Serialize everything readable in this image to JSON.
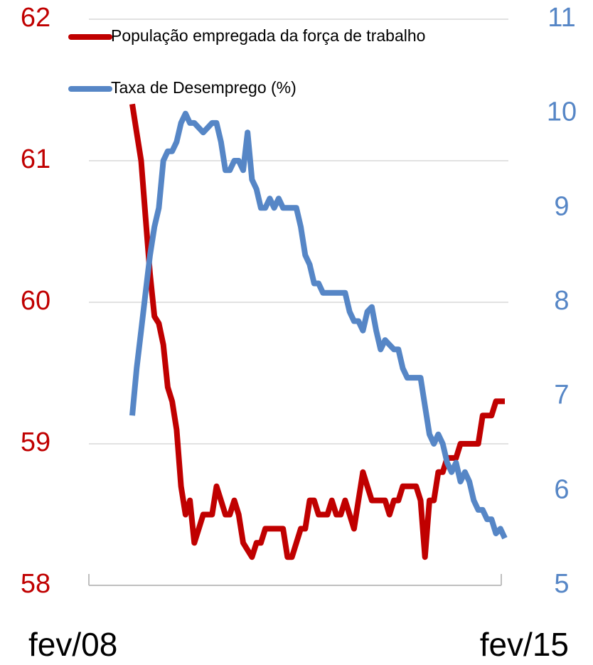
{
  "chart_data": {
    "type": "line",
    "categories": [
      "fev/08",
      null,
      null,
      null,
      null,
      null,
      null,
      null,
      null,
      null,
      null,
      null,
      null,
      null,
      null,
      null,
      null,
      null,
      null,
      null,
      null,
      null,
      null,
      null,
      null,
      null,
      null,
      null,
      null,
      null,
      null,
      null,
      null,
      null,
      null,
      null,
      null,
      null,
      null,
      null,
      null,
      null,
      null,
      null,
      null,
      null,
      null,
      null,
      null,
      null,
      null,
      null,
      null,
      null,
      null,
      null,
      null,
      null,
      null,
      null,
      null,
      null,
      null,
      null,
      null,
      null,
      null,
      null,
      null,
      null,
      null,
      null,
      null,
      null,
      null,
      null,
      null,
      null,
      null,
      null,
      null,
      null,
      null,
      null,
      "fev/15"
    ],
    "series": [
      {
        "name": "População empregada da força de trabalho",
        "color": "#c00000",
        "axis": "y",
        "values": [
          61.4,
          61.2,
          61.0,
          60.6,
          60.2,
          59.9,
          59.85,
          59.7,
          59.4,
          59.3,
          59.1,
          58.7,
          58.5,
          58.6,
          58.3,
          58.4,
          58.5,
          58.5,
          58.5,
          58.7,
          58.6,
          58.5,
          58.5,
          58.6,
          58.5,
          58.3,
          58.25,
          58.2,
          58.3,
          58.3,
          58.4,
          58.4,
          58.4,
          58.4,
          58.4,
          58.2,
          58.2,
          58.3,
          58.4,
          58.4,
          58.6,
          58.6,
          58.5,
          58.5,
          58.5,
          58.6,
          58.5,
          58.5,
          58.6,
          58.5,
          58.4,
          58.6,
          58.8,
          58.7,
          58.6,
          58.6,
          58.6,
          58.6,
          58.5,
          58.6,
          58.6,
          58.7,
          58.7,
          58.7,
          58.7,
          58.6,
          58.2,
          58.6,
          58.6,
          58.8,
          58.8,
          58.9,
          58.9,
          58.9,
          59.0,
          59.0,
          59.0,
          59.0,
          59.0,
          59.2,
          59.2,
          59.2,
          59.3,
          59.3,
          59.3
        ]
      },
      {
        "name": "Taxa de Desemprego (%)",
        "color": "#5686c6",
        "axis": "y2",
        "values": [
          6.8,
          7.3,
          7.7,
          8.1,
          8.5,
          8.8,
          9.0,
          9.5,
          9.6,
          9.6,
          9.7,
          9.9,
          10.0,
          9.9,
          9.9,
          9.85,
          9.8,
          9.85,
          9.9,
          9.9,
          9.7,
          9.4,
          9.4,
          9.5,
          9.5,
          9.4,
          9.8,
          9.3,
          9.2,
          9.0,
          9.0,
          9.1,
          9.0,
          9.1,
          9.0,
          9.0,
          9.0,
          9.0,
          8.8,
          8.5,
          8.4,
          8.2,
          8.2,
          8.1,
          8.1,
          8.1,
          8.1,
          8.1,
          8.1,
          7.9,
          7.8,
          7.8,
          7.7,
          7.9,
          7.95,
          7.7,
          7.5,
          7.6,
          7.55,
          7.5,
          7.5,
          7.3,
          7.2,
          7.2,
          7.2,
          7.2,
          6.9,
          6.6,
          6.5,
          6.6,
          6.5,
          6.3,
          6.2,
          6.3,
          6.1,
          6.2,
          6.1,
          5.9,
          5.8,
          5.8,
          5.7,
          5.7,
          5.55,
          5.6,
          5.5
        ]
      }
    ],
    "ylim": [
      58,
      62
    ],
    "yticks": [
      58,
      59,
      60,
      61,
      62
    ],
    "y2lim": [
      5,
      11
    ],
    "y2ticks": [
      5,
      6,
      7,
      8,
      9,
      10,
      11
    ],
    "grid": true,
    "legend": "top-left"
  }
}
